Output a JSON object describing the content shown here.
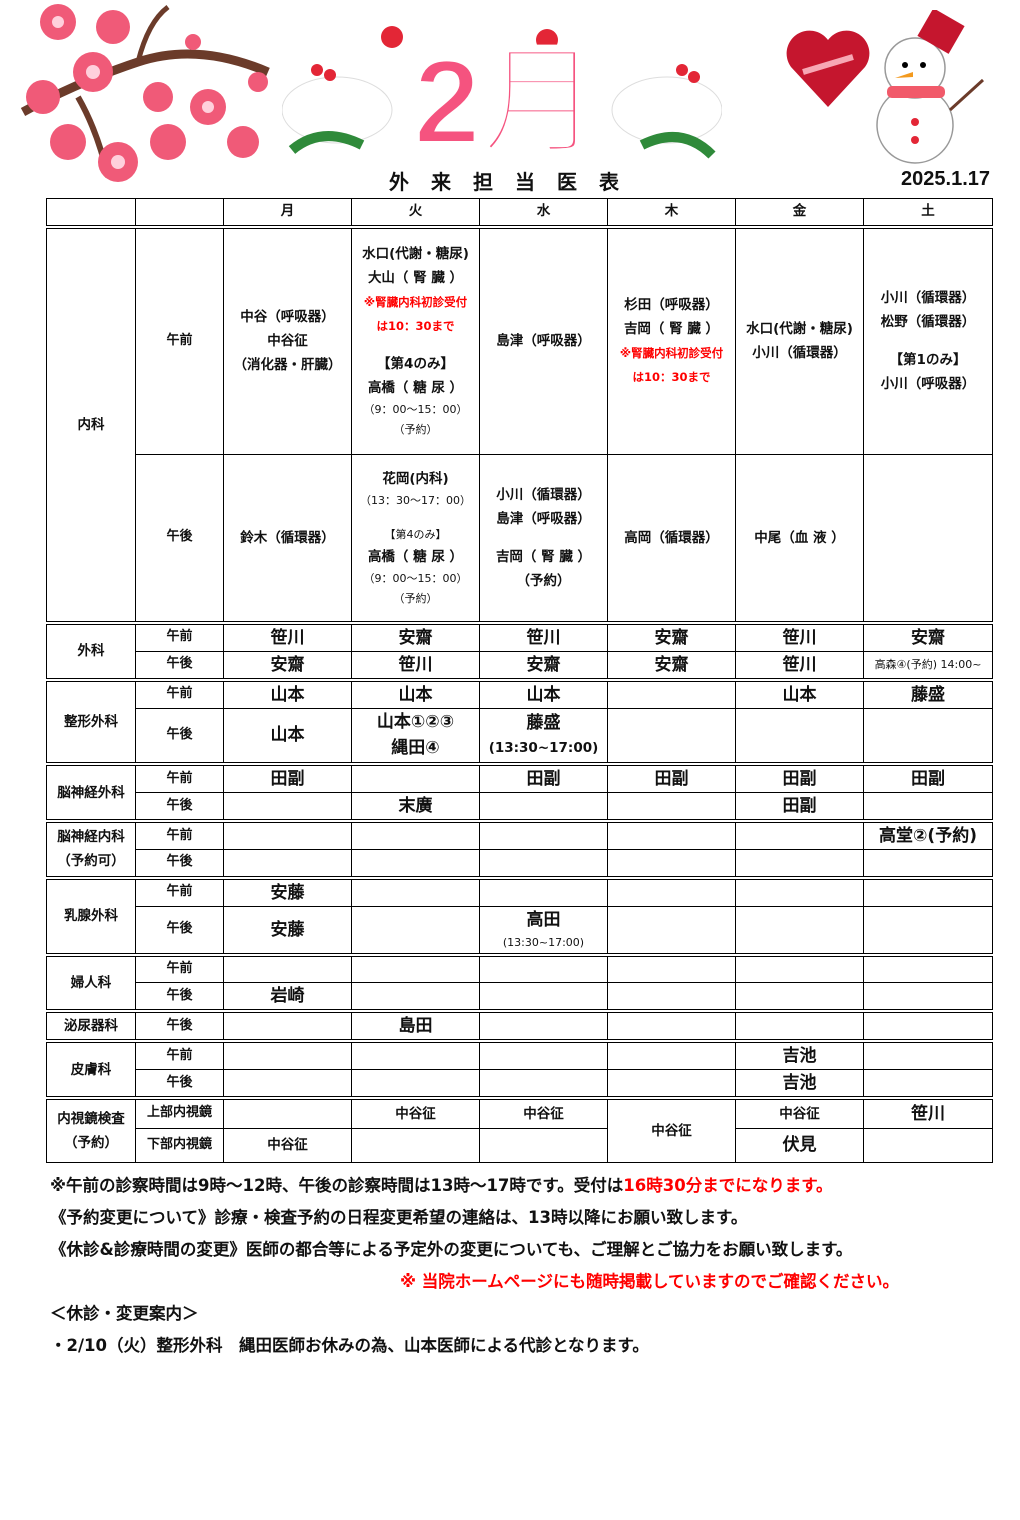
{
  "header": {
    "banner": "2月",
    "title": "外来担当医表",
    "date": "2025.1.17"
  },
  "colors": {
    "banner_pink": "#f5537f",
    "notice_red": "#ff0000",
    "border": "#000000"
  },
  "table": {
    "days": [
      "月",
      "火",
      "水",
      "木",
      "金",
      "土"
    ],
    "rows": [
      {
        "dept": [
          "内科"
        ],
        "deptRowspan": 2,
        "period": "午前",
        "cells": [
          {
            "lines": [
              "中谷（呼吸器）",
              "中谷征",
              "（消化器・肝臓）"
            ]
          },
          {
            "lines": [
              "水口(代謝・糖尿)",
              "大山（ 腎 臓 ）",
              {
                "text": "※腎臓内科初診受付",
                "style": "red"
              },
              {
                "text": "は10：30まで",
                "style": "red"
              },
              "",
              "【第4のみ】",
              "高橋（ 糖 尿 ）",
              {
                "text": "（9：00～15：00）",
                "style": "small"
              },
              {
                "text": "（予約）",
                "style": "small"
              }
            ]
          },
          {
            "lines": [
              "島津（呼吸器）"
            ]
          },
          {
            "lines": [
              "杉田（呼吸器）",
              "吉岡（ 腎 臓 ）",
              {
                "text": "※腎臓内科初診受付",
                "style": "red"
              },
              {
                "text": "は10：30まで",
                "style": "red"
              }
            ]
          },
          {
            "lines": [
              "水口(代謝・糖尿)",
              "小川（循環器）"
            ]
          },
          {
            "lines": [
              "小川（循環器）",
              "松野（循環器）",
              "",
              "【第1のみ】",
              "小川（呼吸器）"
            ]
          }
        ]
      },
      {
        "period": "午後",
        "cells": [
          {
            "lines": [
              "鈴木（循環器）"
            ]
          },
          {
            "lines": [
              "花岡(内科)",
              {
                "text": "（13：30～17：00）",
                "style": "small"
              },
              "",
              {
                "text": "【第4のみ】",
                "style": "small"
              },
              "高橋（ 糖 尿 ）",
              {
                "text": "（9：00～15：00）",
                "style": "small"
              },
              {
                "text": "（予約）",
                "style": "small"
              }
            ]
          },
          {
            "lines": [
              "小川（循環器）",
              "島津（呼吸器）",
              "",
              "吉岡（ 腎 臓 ）",
              "（予約）"
            ]
          },
          {
            "lines": [
              "高岡（循環器）"
            ]
          },
          {
            "lines": [
              "中尾（血 液 ）"
            ]
          },
          {
            "lines": []
          }
        ]
      },
      {
        "dept": [
          "外科"
        ],
        "deptRowspan": 2,
        "period": "午前",
        "cells": [
          {
            "lines": [
              {
                "text": "笹川",
                "style": "big"
              }
            ]
          },
          {
            "lines": [
              {
                "text": "安齋",
                "style": "big"
              }
            ]
          },
          {
            "lines": [
              {
                "text": "笹川",
                "style": "big"
              }
            ]
          },
          {
            "lines": [
              {
                "text": "安齋",
                "style": "big"
              }
            ]
          },
          {
            "lines": [
              {
                "text": "笹川",
                "style": "big"
              }
            ]
          },
          {
            "lines": [
              {
                "text": "安齋",
                "style": "big"
              }
            ]
          }
        ]
      },
      {
        "period": "午後",
        "cells": [
          {
            "lines": [
              {
                "text": "安齋",
                "style": "big"
              }
            ]
          },
          {
            "lines": [
              {
                "text": "笹川",
                "style": "big"
              }
            ]
          },
          {
            "lines": [
              {
                "text": "安齋",
                "style": "big"
              }
            ]
          },
          {
            "lines": [
              {
                "text": "安齋",
                "style": "big"
              }
            ]
          },
          {
            "lines": [
              {
                "text": "笹川",
                "style": "big"
              }
            ]
          },
          {
            "lines": [
              {
                "text": "高森④(予約) 14:00~",
                "style": "small"
              }
            ]
          }
        ]
      },
      {
        "dept": [
          "整形外科"
        ],
        "deptRowspan": 2,
        "period": "午前",
        "cells": [
          {
            "lines": [
              {
                "text": "山本",
                "style": "big"
              }
            ]
          },
          {
            "lines": [
              {
                "text": "山本",
                "style": "big"
              }
            ]
          },
          {
            "lines": [
              {
                "text": "山本",
                "style": "big"
              }
            ]
          },
          {
            "lines": []
          },
          {
            "lines": [
              {
                "text": "山本",
                "style": "big"
              }
            ]
          },
          {
            "lines": [
              {
                "text": "藤盛",
                "style": "big"
              }
            ]
          }
        ]
      },
      {
        "period": "午後",
        "cells": [
          {
            "lines": [
              {
                "text": "山本",
                "style": "big"
              }
            ]
          },
          {
            "lines": [
              {
                "text": "山本①②③",
                "style": "big"
              },
              {
                "text": "縄田④",
                "style": "big"
              }
            ]
          },
          {
            "lines": [
              {
                "text": "藤盛",
                "style": "big"
              },
              {
                "text": "(13:30~17:00)",
                "style": "med"
              }
            ]
          },
          {
            "lines": []
          },
          {
            "lines": []
          },
          {
            "lines": []
          }
        ]
      },
      {
        "dept": [
          "脳神経外科"
        ],
        "deptRowspan": 2,
        "period": "午前",
        "cells": [
          {
            "lines": [
              {
                "text": "田副",
                "style": "big"
              }
            ]
          },
          {
            "lines": []
          },
          {
            "lines": [
              {
                "text": "田副",
                "style": "big"
              }
            ]
          },
          {
            "lines": [
              {
                "text": "田副",
                "style": "big"
              }
            ]
          },
          {
            "lines": [
              {
                "text": "田副",
                "style": "big"
              }
            ]
          },
          {
            "lines": [
              {
                "text": "田副",
                "style": "big"
              }
            ]
          }
        ]
      },
      {
        "period": "午後",
        "cells": [
          {
            "lines": []
          },
          {
            "lines": [
              {
                "text": "末廣",
                "style": "big"
              }
            ]
          },
          {
            "lines": []
          },
          {
            "lines": []
          },
          {
            "lines": [
              {
                "text": "田副",
                "style": "big"
              }
            ]
          },
          {
            "lines": []
          }
        ]
      },
      {
        "dept": [
          "脳神経内科",
          "（予約可）"
        ],
        "deptRowspan": 2,
        "period": "午前",
        "cells": [
          {
            "lines": []
          },
          {
            "lines": []
          },
          {
            "lines": []
          },
          {
            "lines": []
          },
          {
            "lines": []
          },
          {
            "lines": [
              {
                "text": "高堂②(予約)",
                "style": "big"
              }
            ]
          }
        ]
      },
      {
        "period": "午後",
        "cells": [
          {
            "lines": []
          },
          {
            "lines": []
          },
          {
            "lines": []
          },
          {
            "lines": []
          },
          {
            "lines": []
          },
          {
            "lines": []
          }
        ]
      },
      {
        "dept": [
          "乳腺外科"
        ],
        "deptRowspan": 2,
        "period": "午前",
        "cells": [
          {
            "lines": [
              {
                "text": "安藤",
                "style": "big"
              }
            ]
          },
          {
            "lines": []
          },
          {
            "lines": []
          },
          {
            "lines": []
          },
          {
            "lines": []
          },
          {
            "lines": []
          }
        ]
      },
      {
        "period": "午後",
        "cells": [
          {
            "lines": [
              {
                "text": "安藤",
                "style": "big"
              }
            ]
          },
          {
            "lines": []
          },
          {
            "lines": [
              {
                "text": "高田",
                "style": "big"
              },
              {
                "text": "(13:30~17:00)",
                "style": "small"
              }
            ]
          },
          {
            "lines": []
          },
          {
            "lines": []
          },
          {
            "lines": []
          }
        ]
      },
      {
        "dept": [
          "婦人科"
        ],
        "deptRowspan": 2,
        "period": "午前",
        "cells": [
          {
            "lines": []
          },
          {
            "lines": []
          },
          {
            "lines": []
          },
          {
            "lines": []
          },
          {
            "lines": []
          },
          {
            "lines": []
          }
        ]
      },
      {
        "period": "午後",
        "cells": [
          {
            "lines": [
              {
                "text": "岩崎",
                "style": "big"
              }
            ]
          },
          {
            "lines": []
          },
          {
            "lines": []
          },
          {
            "lines": []
          },
          {
            "lines": []
          },
          {
            "lines": []
          }
        ]
      },
      {
        "dept": [
          "泌尿器科"
        ],
        "deptRowspan": 1,
        "period": "午後",
        "cells": [
          {
            "lines": []
          },
          {
            "lines": [
              {
                "text": "島田",
                "style": "big"
              }
            ]
          },
          {
            "lines": []
          },
          {
            "lines": []
          },
          {
            "lines": []
          },
          {
            "lines": []
          }
        ]
      },
      {
        "dept": [
          "皮膚科"
        ],
        "deptRowspan": 2,
        "period": "午前",
        "cells": [
          {
            "lines": []
          },
          {
            "lines": []
          },
          {
            "lines": []
          },
          {
            "lines": []
          },
          {
            "lines": [
              {
                "text": "吉池",
                "style": "big"
              }
            ]
          },
          {
            "lines": []
          }
        ]
      },
      {
        "period": "午後",
        "cells": [
          {
            "lines": []
          },
          {
            "lines": []
          },
          {
            "lines": []
          },
          {
            "lines": []
          },
          {
            "lines": [
              {
                "text": "吉池",
                "style": "big"
              }
            ]
          },
          {
            "lines": []
          }
        ]
      },
      {
        "dept": [
          "内視鏡検査",
          "（予約）"
        ],
        "deptRowspan": 2,
        "period": "上部内視鏡",
        "cells": [
          {
            "lines": []
          },
          {
            "lines": [
              {
                "text": "中谷征",
                "style": "med"
              }
            ]
          },
          {
            "lines": [
              {
                "text": "中谷征",
                "style": "med"
              }
            ]
          },
          {
            "lines": [
              {
                "text": "中谷征",
                "style": "med"
              }
            ],
            "rowspan": 2
          },
          {
            "lines": [
              {
                "text": "中谷征",
                "style": "med"
              }
            ]
          },
          {
            "lines": [
              {
                "text": "笹川",
                "style": "big"
              }
            ]
          }
        ]
      },
      {
        "period": "下部内視鏡",
        "cells": [
          {
            "lines": [
              {
                "text": "中谷征",
                "style": "med"
              }
            ]
          },
          {
            "lines": []
          },
          {
            "lines": []
          },
          null,
          {
            "lines": [
              {
                "text": "伏見",
                "style": "big"
              }
            ]
          },
          {
            "lines": []
          }
        ]
      }
    ]
  },
  "notes": {
    "hours_prefix": "※午前の診察時間は9時～12時、午後の診察時間は13時～17時です。受付は",
    "hours_red": "16時30分までになります。",
    "reservation": "《予約変更について》診療・検査予約の日程変更希望の連絡は、13時以降にお願い致します。",
    "changes": "《休診&診療時間の変更》医師の都合等による予定外の変更についても、ご理解とご協力をお願い致します。",
    "homepage": "※ 当院ホームページにも随時掲載していますのでご確認ください。",
    "closure_heading": "＜休診・変更案内＞",
    "closure_item": "・2/10（火）整形外科　縄田医師お休みの為、山本医師による代診となります。"
  }
}
